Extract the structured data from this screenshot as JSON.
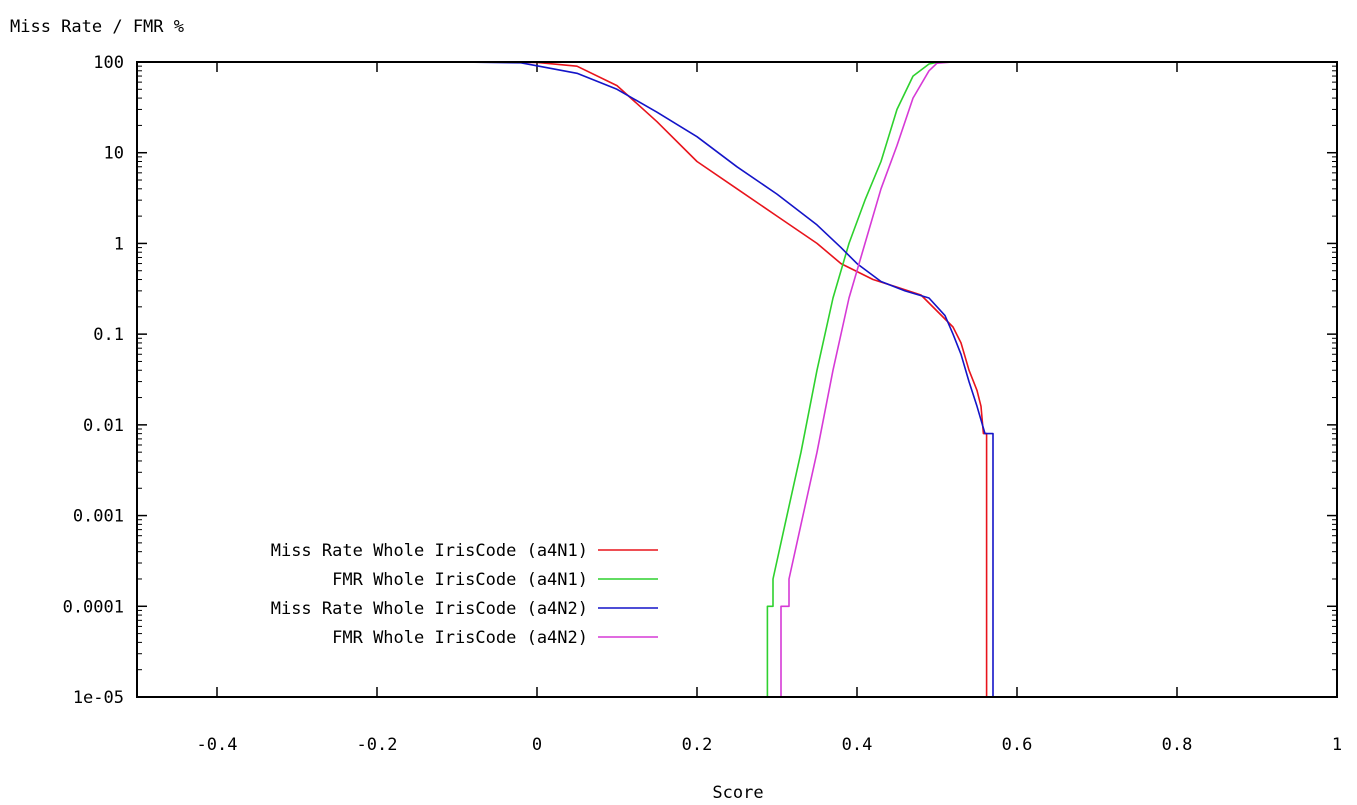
{
  "chart_data": {
    "type": "line",
    "title": "",
    "xlabel": "Score",
    "ylabel": "Miss Rate / FMR %",
    "yscale": "log",
    "xlim": [
      -0.5,
      1.0
    ],
    "ylim": [
      1e-05,
      100
    ],
    "xticks": [
      {
        "value": -0.4,
        "label": "-0.4"
      },
      {
        "value": -0.2,
        "label": "-0.2"
      },
      {
        "value": 0,
        "label": "0"
      },
      {
        "value": 0.2,
        "label": "0.2"
      },
      {
        "value": 0.4,
        "label": "0.4"
      },
      {
        "value": 0.6,
        "label": "0.6"
      },
      {
        "value": 0.8,
        "label": "0.8"
      },
      {
        "value": 1.0,
        "label": "1"
      }
    ],
    "yticks": [
      {
        "value": 100,
        "label": "100"
      },
      {
        "value": 10,
        "label": "10"
      },
      {
        "value": 1,
        "label": "1"
      },
      {
        "value": 0.1,
        "label": "0.1"
      },
      {
        "value": 0.01,
        "label": "0.01"
      },
      {
        "value": 0.001,
        "label": "0.001"
      },
      {
        "value": 0.0001,
        "label": "0.0001"
      },
      {
        "value": 1e-05,
        "label": "1e-05"
      }
    ],
    "grid": false,
    "legend_position": "bottom-left",
    "series": [
      {
        "name": "Miss Rate Whole IrisCode (a4N1)",
        "color": "#e8141c",
        "step": false,
        "points": [
          [
            -0.08,
            100
          ],
          [
            0,
            99
          ],
          [
            0.05,
            90
          ],
          [
            0.1,
            55
          ],
          [
            0.15,
            22
          ],
          [
            0.2,
            8
          ],
          [
            0.25,
            4
          ],
          [
            0.3,
            2
          ],
          [
            0.35,
            1
          ],
          [
            0.38,
            0.6
          ],
          [
            0.42,
            0.4
          ],
          [
            0.45,
            0.33
          ],
          [
            0.48,
            0.27
          ],
          [
            0.5,
            0.18
          ],
          [
            0.52,
            0.12
          ],
          [
            0.53,
            0.08
          ],
          [
            0.54,
            0.04
          ],
          [
            0.55,
            0.024
          ],
          [
            0.555,
            0.016
          ],
          [
            0.558,
            0.008
          ],
          [
            0.562,
            0.008
          ],
          [
            0.562,
            1e-05
          ]
        ]
      },
      {
        "name": "FMR Whole IrisCode (a4N1)",
        "color": "#2ed12e",
        "step": false,
        "points": [
          [
            0.288,
            1e-05
          ],
          [
            0.288,
            0.0001
          ],
          [
            0.295,
            0.0001
          ],
          [
            0.295,
            0.0002
          ],
          [
            0.31,
            0.0008
          ],
          [
            0.33,
            0.005
          ],
          [
            0.35,
            0.04
          ],
          [
            0.37,
            0.25
          ],
          [
            0.39,
            1
          ],
          [
            0.41,
            3
          ],
          [
            0.43,
            8
          ],
          [
            0.45,
            30
          ],
          [
            0.47,
            70
          ],
          [
            0.49,
            95
          ],
          [
            0.5,
            99
          ],
          [
            0.52,
            100
          ],
          [
            0.56,
            100
          ]
        ]
      },
      {
        "name": "Miss Rate Whole IrisCode (a4N2)",
        "color": "#1414c8",
        "step": false,
        "points": [
          [
            -0.1,
            100
          ],
          [
            -0.02,
            98
          ],
          [
            0.05,
            75
          ],
          [
            0.1,
            50
          ],
          [
            0.15,
            28
          ],
          [
            0.2,
            15
          ],
          [
            0.25,
            7
          ],
          [
            0.3,
            3.5
          ],
          [
            0.35,
            1.6
          ],
          [
            0.38,
            0.9
          ],
          [
            0.4,
            0.6
          ],
          [
            0.43,
            0.38
          ],
          [
            0.46,
            0.3
          ],
          [
            0.49,
            0.25
          ],
          [
            0.51,
            0.16
          ],
          [
            0.52,
            0.1
          ],
          [
            0.53,
            0.06
          ],
          [
            0.54,
            0.03
          ],
          [
            0.55,
            0.016
          ],
          [
            0.56,
            0.008
          ],
          [
            0.57,
            0.008
          ],
          [
            0.57,
            1e-05
          ]
        ]
      },
      {
        "name": "FMR Whole IrisCode (a4N2)",
        "color": "#d63ad6",
        "step": false,
        "points": [
          [
            0.305,
            1e-05
          ],
          [
            0.305,
            0.0001
          ],
          [
            0.315,
            0.0001
          ],
          [
            0.315,
            0.0002
          ],
          [
            0.33,
            0.0008
          ],
          [
            0.35,
            0.005
          ],
          [
            0.37,
            0.04
          ],
          [
            0.39,
            0.25
          ],
          [
            0.41,
            1
          ],
          [
            0.43,
            4
          ],
          [
            0.45,
            12
          ],
          [
            0.47,
            40
          ],
          [
            0.49,
            80
          ],
          [
            0.5,
            97
          ],
          [
            0.52,
            100
          ],
          [
            0.57,
            100
          ]
        ]
      }
    ]
  }
}
